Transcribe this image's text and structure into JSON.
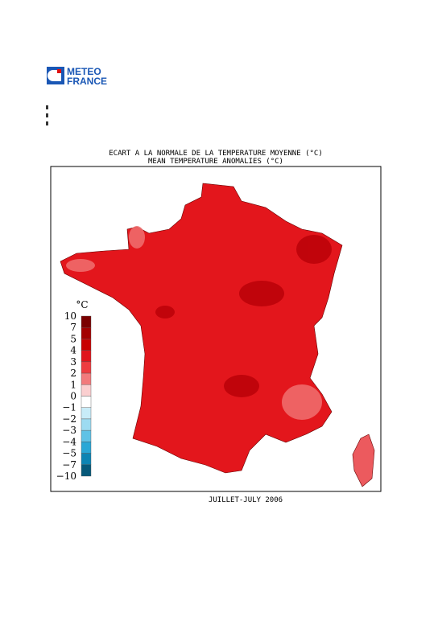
{
  "logo": {
    "line1": "METEO",
    "line2": "FRANCE"
  },
  "title": [
    "ECART A LA NORMALE DE LA TEMPERATURE MOYENNE (°C)",
    "MEAN TEMPERATURE ANOMALIES (°C)"
  ],
  "legend": {
    "unit": "°C",
    "ticks": [
      "10",
      "7",
      "5",
      "4",
      "3",
      "2",
      "1",
      "0",
      "−1",
      "−2",
      "−3",
      "−4",
      "−5",
      "−7",
      "−10"
    ],
    "colors": [
      "#7a0000",
      "#a30000",
      "#c80000",
      "#e0141c",
      "#ee3c40",
      "#f27a7c",
      "#fbcfd0",
      "#ffffff",
      "#c8ecf8",
      "#9ddbf1",
      "#5fc2e6",
      "#2aa7d6",
      "#0d84b3",
      "#07597a"
    ]
  },
  "caption": "JUILLET-JULY 2006"
}
